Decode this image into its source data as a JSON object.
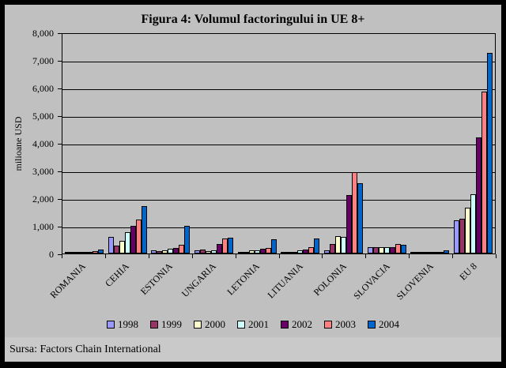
{
  "frame": {
    "source": "Sursa: Factors Chain International"
  },
  "chart_data": {
    "type": "bar",
    "title": "Figura 4: Volumul factoringului in UE 8+",
    "xlabel": "",
    "ylabel": "milioane USD",
    "ylim": [
      0,
      8000
    ],
    "ytick_interval": 1000,
    "ytick_labels": [
      "8,000",
      "7,000",
      "6,000",
      "5,000",
      "4,000",
      "3,000",
      "2,000",
      "1,000",
      "0"
    ],
    "grid": true,
    "plot_background": "#c0c0c0",
    "legend_position": "bottom",
    "categories": [
      "ROMANIA",
      "CEHIA",
      "ESTONIA",
      "UNGARIA",
      "LETONIA",
      "LITUANIA",
      "POLONIA",
      "SLOVACIA",
      "SLOVENIA",
      "EU 8"
    ],
    "series": [
      {
        "name": "1998",
        "color": "#9999FF",
        "values": [
          10,
          600,
          100,
          110,
          60,
          40,
          100,
          240,
          10,
          1200
        ]
      },
      {
        "name": "1999",
        "color": "#993366",
        "values": [
          20,
          280,
          90,
          150,
          70,
          60,
          340,
          220,
          10,
          1250
        ]
      },
      {
        "name": "2000",
        "color": "#FFFFCC",
        "values": [
          30,
          470,
          120,
          90,
          100,
          70,
          620,
          220,
          15,
          1650
        ]
      },
      {
        "name": "2001",
        "color": "#CCFFFF",
        "values": [
          40,
          770,
          160,
          120,
          120,
          100,
          600,
          220,
          25,
          2150
        ]
      },
      {
        "name": "2002",
        "color": "#660066",
        "values": [
          70,
          1000,
          200,
          330,
          170,
          150,
          2100,
          240,
          50,
          4200
        ]
      },
      {
        "name": "2003",
        "color": "#FF8080",
        "values": [
          90,
          1230,
          300,
          550,
          210,
          240,
          2950,
          350,
          70,
          5850
        ]
      },
      {
        "name": "2004",
        "color": "#0066CC",
        "values": [
          150,
          1700,
          1000,
          580,
          500,
          550,
          2550,
          320,
          100,
          7250
        ]
      }
    ]
  }
}
